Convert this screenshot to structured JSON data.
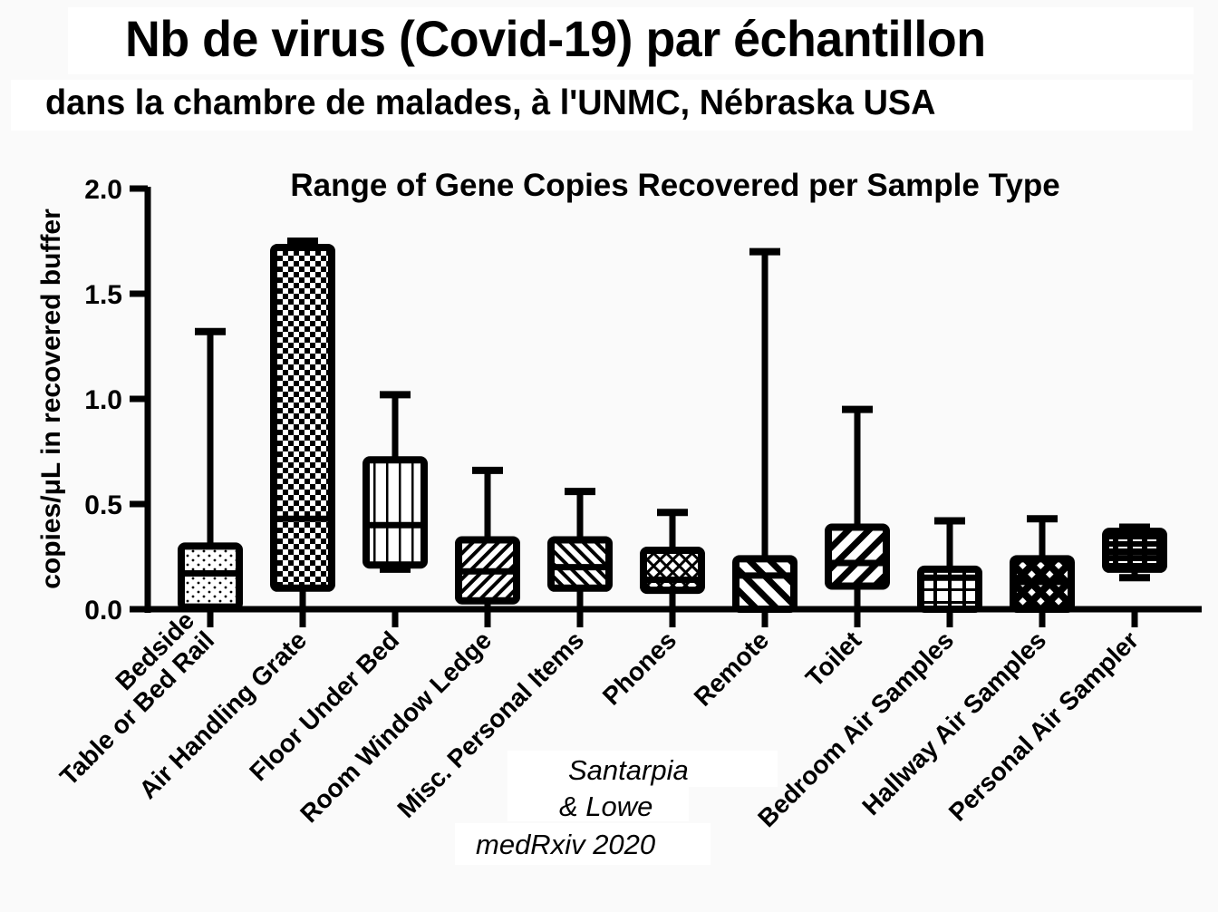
{
  "header": {
    "title": "Nb de virus (Covid-19) par échantillon",
    "subtitle": "dans la chambre de malades, à l'UNMC, Nébraska USA"
  },
  "citation": {
    "line1": "Santarpia",
    "line2": "& Lowe",
    "line3": "medRxiv 2020"
  },
  "colors": {
    "ink": "#000000",
    "background": "#fafafa",
    "box_fill": "#ffffff"
  },
  "chart_data": {
    "type": "box",
    "title": "Range of Gene Copies Recovered per Sample Type",
    "xlabel": "",
    "ylabel": "copies/μL in recovered buffer",
    "ylim": [
      0,
      2.0
    ],
    "yticks": [
      "0.0",
      "0.5",
      "1.0",
      "1.5",
      "2.0"
    ],
    "ytick_values": [
      0,
      0.5,
      1.0,
      1.5,
      2.0
    ],
    "grid": false,
    "categories": [
      [
        "Bedside",
        "Table or Bed Rail"
      ],
      [
        "Air Handling Grate"
      ],
      [
        "Floor Under Bed"
      ],
      [
        "Room Window Ledge"
      ],
      [
        "Misc. Personal Items"
      ],
      [
        "Phones"
      ],
      [
        "Remote"
      ],
      [
        "Toilet"
      ],
      [
        "Bedroom Air Samples"
      ],
      [
        "Hallway Air Samples"
      ],
      [
        "Personal Air Sampler"
      ]
    ],
    "series": [
      {
        "name": "Bedside Table or Bed Rail",
        "min": 0.0,
        "q1": 0.01,
        "median": 0.17,
        "q3": 0.3,
        "max": 1.32,
        "pattern": "dots"
      },
      {
        "name": "Air Handling Grate",
        "min": 0.0,
        "q1": 0.1,
        "median": 0.43,
        "q3": 1.72,
        "max": 1.75,
        "pattern": "checker"
      },
      {
        "name": "Floor Under Bed",
        "min": 0.19,
        "q1": 0.21,
        "median": 0.4,
        "q3": 0.71,
        "max": 1.02,
        "pattern": "vertical"
      },
      {
        "name": "Room Window Ledge",
        "min": 0.0,
        "q1": 0.04,
        "median": 0.18,
        "q3": 0.33,
        "max": 0.66,
        "pattern": "diag-up"
      },
      {
        "name": "Misc. Personal Items",
        "min": 0.0,
        "q1": 0.1,
        "median": 0.2,
        "q3": 0.33,
        "max": 0.56,
        "pattern": "diag-down"
      },
      {
        "name": "Phones",
        "min": 0.0,
        "q1": 0.09,
        "median": 0.14,
        "q3": 0.28,
        "max": 0.46,
        "pattern": "weave"
      },
      {
        "name": "Remote",
        "min": 0.0,
        "q1": 0.0,
        "median": 0.16,
        "q3": 0.24,
        "max": 1.7,
        "pattern": "diag-down-wide"
      },
      {
        "name": "Toilet",
        "min": 0.0,
        "q1": 0.11,
        "median": 0.22,
        "q3": 0.39,
        "max": 0.95,
        "pattern": "diag-up-wide"
      },
      {
        "name": "Bedroom Air Samples",
        "min": 0.0,
        "q1": 0.0,
        "median": 0.15,
        "q3": 0.19,
        "max": 0.42,
        "pattern": "grid"
      },
      {
        "name": "Hallway Air Samples",
        "min": 0.0,
        "q1": 0.0,
        "median": 0.13,
        "q3": 0.24,
        "max": 0.43,
        "pattern": "diamond"
      },
      {
        "name": "Personal Air Sampler",
        "min": 0.15,
        "q1": 0.19,
        "median": 0.27,
        "q3": 0.37,
        "max": 0.39,
        "pattern": "dashes"
      }
    ]
  }
}
